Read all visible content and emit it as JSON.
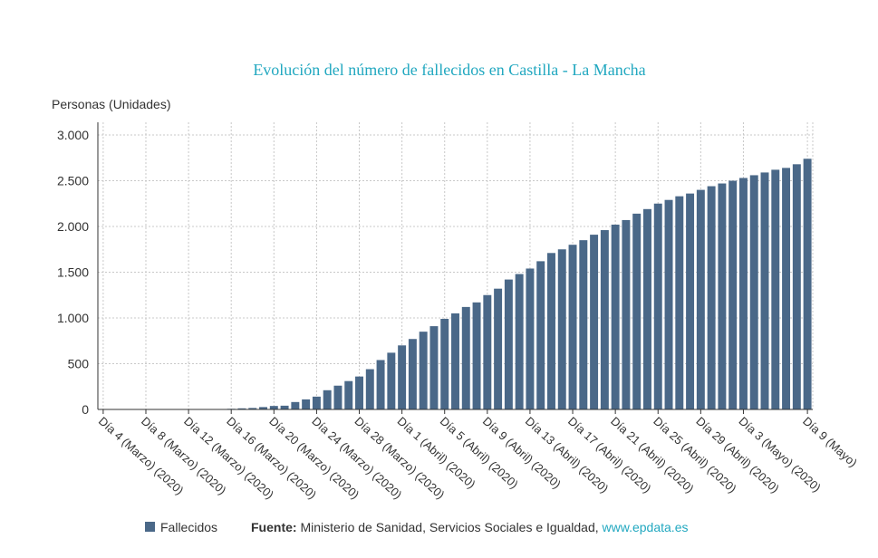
{
  "chart_data": {
    "type": "bar",
    "title": "Evolución del número de fallecidos en Castilla - La Mancha",
    "y_label": "Personas (Unidades)",
    "categories": [
      "Día 4 (Marzo) (2020)",
      null,
      null,
      null,
      "Día 8 (Marzo) (2020)",
      null,
      null,
      null,
      "Día 12 (Marzo) (2020)",
      null,
      null,
      null,
      "Día 16 (Marzo) (2020)",
      null,
      null,
      null,
      "Día 20 (Marzo) (2020)",
      null,
      null,
      null,
      "Día 24 (Marzo) (2020)",
      null,
      null,
      null,
      "Día 28 (Marzo) (2020)",
      null,
      null,
      null,
      "Día 1 (Abril) (2020)",
      null,
      null,
      null,
      "Día 5 (Abril) (2020)",
      null,
      null,
      null,
      "Día 9 (Abril) (2020)",
      null,
      null,
      null,
      "Día 13 (Abril) (2020)",
      null,
      null,
      null,
      "Día 17 (Abril) (2020)",
      null,
      null,
      null,
      "Día 21 (Abril) (2020)",
      null,
      null,
      null,
      "Día 25 (Abril) (2020)",
      null,
      null,
      null,
      "Día 29 (Abril) (2020)",
      null,
      null,
      null,
      "Día 3 (Mayo) (2020)",
      null,
      null,
      null,
      null,
      null,
      "Día 9 (Mayo)"
    ],
    "series": [
      {
        "name": "Fallecidos",
        "color": "#4a6888",
        "values": [
          0,
          0,
          0,
          0,
          0,
          0,
          1,
          1,
          2,
          2,
          3,
          4,
          7,
          12,
          16,
          26,
          38,
          41,
          81,
          110,
          140,
          210,
          260,
          310,
          360,
          440,
          540,
          620,
          700,
          770,
          850,
          910,
          990,
          1050,
          1120,
          1170,
          1250,
          1320,
          1420,
          1480,
          1540,
          1620,
          1710,
          1750,
          1800,
          1850,
          1910,
          1960,
          2020,
          2070,
          2140,
          2190,
          2250,
          2290,
          2330,
          2360,
          2400,
          2440,
          2470,
          2500,
          2530,
          2560,
          2590,
          2620,
          2640,
          2680,
          2740
        ]
      }
    ],
    "ylim": [
      0,
      3000
    ],
    "yticks": [
      0,
      500,
      {
        "value": 1000,
        "label": "1.000"
      },
      {
        "value": 1500,
        "label": "1.500"
      },
      {
        "value": 2000,
        "label": "2.000"
      },
      {
        "value": 2500,
        "label": "2.500"
      },
      {
        "value": 3000,
        "label": "3.000"
      }
    ],
    "grid": true,
    "source_label": "Fuente:",
    "source": "Ministerio de Sanidad, Servicios Sociales e Igualdad,",
    "source_link": "www.epdata.es"
  }
}
